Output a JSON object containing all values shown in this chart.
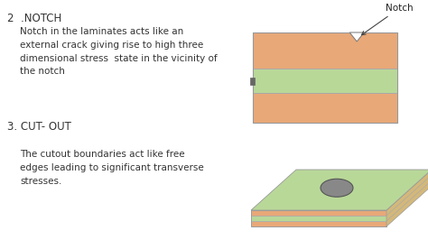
{
  "bg_color": "#ffffff",
  "title1": "2  .NOTCH",
  "title2": "3. CUT- OUT",
  "desc1": "Notch in the laminates acts like an\nexternal crack giving rise to high three\ndimensional stress  state in the vicinity of\nthe notch",
  "desc2": "The cutout boundaries act like free\nedges leading to significant transverse\nstresses.",
  "notch_label": "Notch",
  "layer_orange": "#E8A878",
  "layer_green": "#B8D898",
  "hole_color": "#888888",
  "text_fontsize": 7.5,
  "title_fontsize": 8.5,
  "text_color": "#333333"
}
